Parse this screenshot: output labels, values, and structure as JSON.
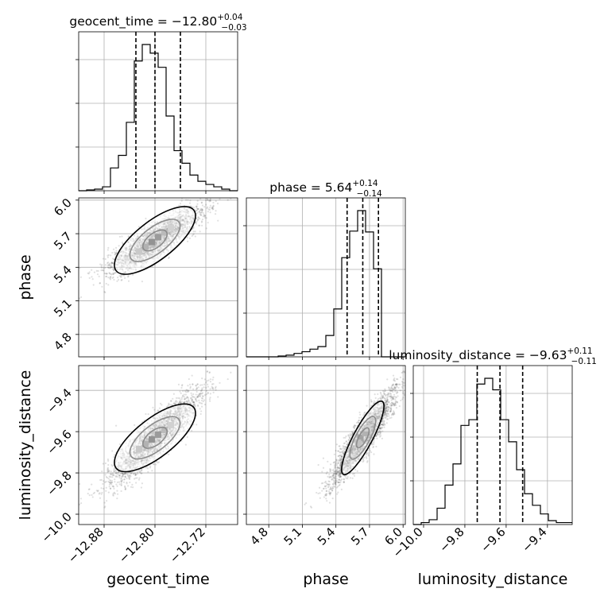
{
  "chart_data": {
    "type": "corner",
    "parameters": [
      "geocent_time",
      "phase",
      "luminosity_distance"
    ],
    "titles": [
      {
        "param": "geocent_time",
        "prefix": "geocent_time = ",
        "median": "−12.80",
        "plus": "+0.04",
        "minus": "−0.03"
      },
      {
        "param": "phase",
        "prefix": "phase = ",
        "median": "5.64",
        "plus": "+0.14",
        "minus": "−0.14"
      },
      {
        "param": "luminosity_distance",
        "prefix": "luminosity_distance = ",
        "median": "−9.63",
        "plus": "+0.11",
        "minus": "−0.11"
      }
    ],
    "ranges": {
      "geocent_time": [
        -12.92,
        -12.67
      ],
      "phase": [
        4.6,
        6.02
      ],
      "luminosity_distance": [
        -10.05,
        -9.28
      ]
    },
    "ticks": {
      "geocent_time": [
        {
          "value": -12.88,
          "label": "−12.88"
        },
        {
          "value": -12.8,
          "label": "−12.80"
        },
        {
          "value": -12.72,
          "label": "−12.72"
        }
      ],
      "phase": [
        {
          "value": 4.8,
          "label": "4.8"
        },
        {
          "value": 5.1,
          "label": "5.1"
        },
        {
          "value": 5.4,
          "label": "5.4"
        },
        {
          "value": 5.7,
          "label": "5.7"
        },
        {
          "value": 6.0,
          "label": "6.0"
        }
      ],
      "luminosity_distance": [
        {
          "value": -10.0,
          "label": "−10.0"
        },
        {
          "value": -9.8,
          "label": "−9.8"
        },
        {
          "value": -9.6,
          "label": "−9.6"
        },
        {
          "value": -9.4,
          "label": "−9.4"
        }
      ]
    },
    "quantiles": {
      "geocent_time": [
        -12.83,
        -12.8,
        -12.76
      ],
      "phase": [
        5.5,
        5.64,
        5.78
      ],
      "luminosity_distance": [
        -9.74,
        -9.63,
        -9.52
      ]
    },
    "histograms": {
      "geocent_time": {
        "start": -12.92,
        "step": 0.0125,
        "counts": [
          0,
          1,
          2,
          5,
          29,
          45,
          87,
          165,
          186,
          175,
          157,
          95,
          51,
          35,
          20,
          12,
          8,
          5,
          2,
          0
        ]
      },
      "phase": {
        "start": 4.6,
        "step": 0.071,
        "counts": [
          0,
          0,
          0,
          0,
          1,
          2,
          4,
          6,
          9,
          12,
          25,
          56,
          116,
          147,
          171,
          146,
          103,
          0,
          0,
          0
        ]
      },
      "luminosity_distance": {
        "start": -10.05,
        "step": 0.0385,
        "counts": [
          0,
          2,
          5,
          17,
          41,
          63,
          103,
          109,
          146,
          152,
          140,
          109,
          86,
          57,
          32,
          20,
          11,
          4,
          2,
          2
        ]
      }
    },
    "grid": true,
    "axis_labels": {
      "geocent_time": "geocent_time",
      "phase": "phase",
      "luminosity_distance": "luminosity_distance"
    }
  }
}
